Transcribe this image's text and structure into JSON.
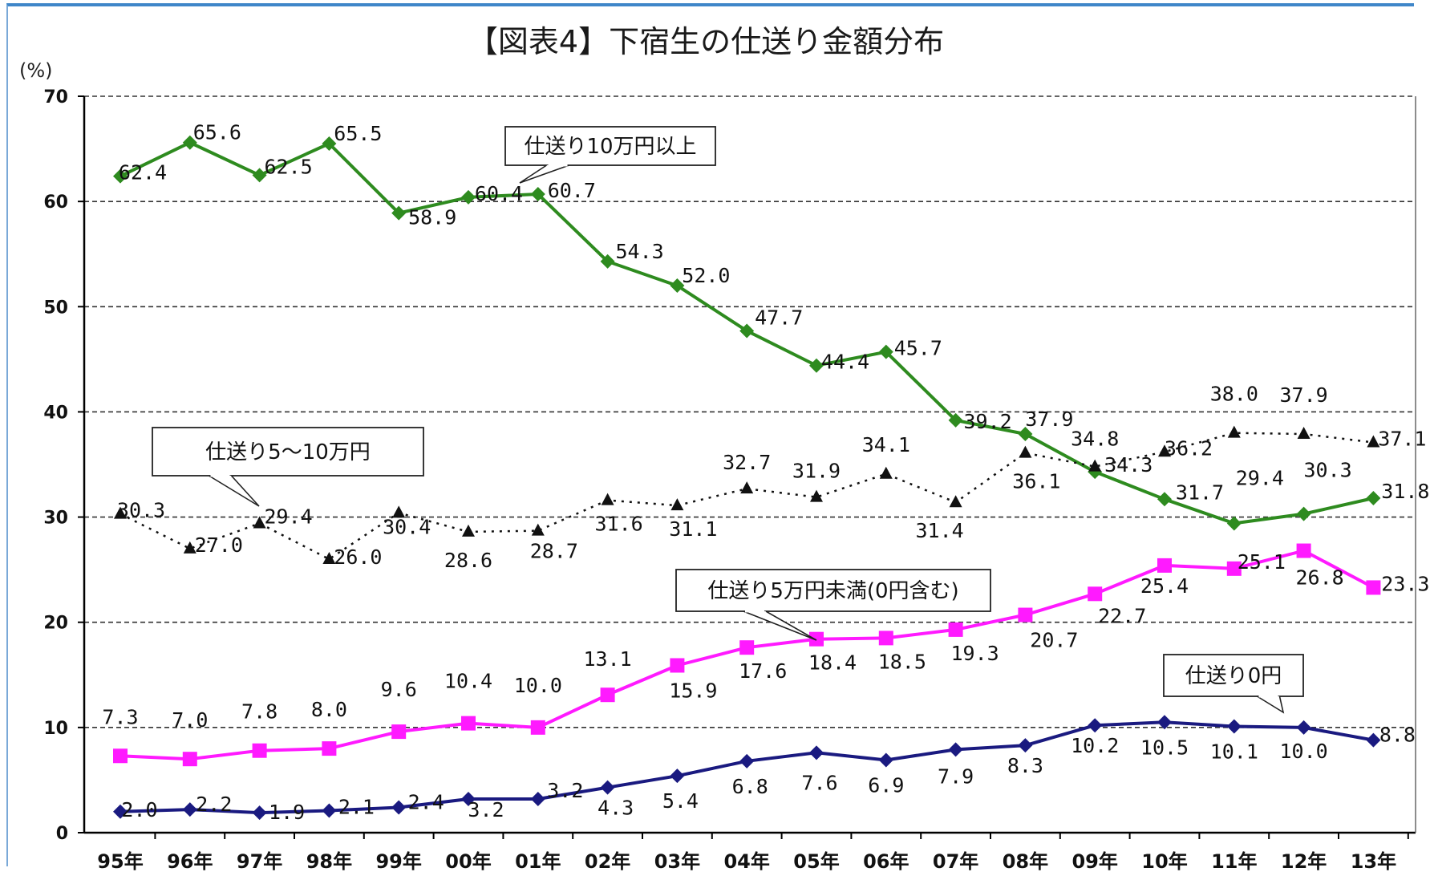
{
  "chart_data": {
    "type": "line",
    "title": "【図表4】下宿生の仕送り金額分布",
    "ylabel": "(%)",
    "ylim": [
      0,
      70
    ],
    "yticks": [
      "0",
      "10",
      "20",
      "30",
      "40",
      "50",
      "60",
      "70"
    ],
    "grid": true,
    "categories": [
      "95年",
      "96年",
      "97年",
      "98年",
      "99年",
      "00年",
      "01年",
      "02年",
      "03年",
      "04年",
      "05年",
      "06年",
      "07年",
      "08年",
      "09年",
      "10年",
      "11年",
      "12年",
      "13年"
    ],
    "series": [
      {
        "name": "仕送り10万円以上",
        "color": "#2e8b1f",
        "marker": "diamond",
        "line": "solid",
        "values": [
          62.4,
          65.6,
          62.5,
          65.5,
          58.9,
          60.4,
          60.7,
          54.3,
          52.0,
          47.7,
          44.4,
          45.7,
          39.2,
          37.9,
          34.3,
          31.7,
          29.4,
          30.3,
          31.8
        ],
        "labels": [
          "62.4",
          "65.6",
          "62.5",
          "65.5",
          "58.9",
          "60.4",
          "60.7",
          "54.3",
          "52.0",
          "47.7",
          "44.4",
          "45.7",
          "39.2",
          "37.9",
          "34.3",
          "31.7",
          "29.4",
          "30.3",
          "31.8"
        ]
      },
      {
        "name": "仕送り5～10万円",
        "color": "#111111",
        "marker": "triangle",
        "line": "dotted",
        "values": [
          30.3,
          27.0,
          29.4,
          26.0,
          30.4,
          28.6,
          28.7,
          31.6,
          31.1,
          32.7,
          31.9,
          34.1,
          31.4,
          36.1,
          34.8,
          36.2,
          38.0,
          37.9,
          37.1
        ],
        "labels": [
          "30.3",
          "27.0",
          "29.4",
          "26.0",
          "30.4",
          "28.6",
          "28.7",
          "31.6",
          "31.1",
          "32.7",
          "31.9",
          "34.1",
          "31.4",
          "36.1",
          "34.8",
          "36.2",
          "38.0",
          "37.9",
          "37.1"
        ]
      },
      {
        "name": "仕送り5万円未満(0円含む)",
        "color": "#ff1aff",
        "marker": "square",
        "line": "solid",
        "values": [
          7.3,
          7.0,
          7.8,
          8.0,
          9.6,
          10.4,
          10.0,
          13.1,
          15.9,
          17.6,
          18.4,
          18.5,
          19.3,
          20.7,
          22.7,
          25.4,
          25.1,
          26.8,
          23.3
        ],
        "labels": [
          "7.3",
          "7.0",
          "7.8",
          "8.0",
          "9.6",
          "10.4",
          "10.0",
          "13.1",
          "15.9",
          "17.6",
          "18.4",
          "18.5",
          "19.3",
          "20.7",
          "22.7",
          "25.4",
          "25.1",
          "26.8",
          "23.3"
        ]
      },
      {
        "name": "仕送り0円",
        "color": "#1a1a80",
        "marker": "diamond",
        "line": "solid",
        "values": [
          2.0,
          2.2,
          1.9,
          2.1,
          2.4,
          3.2,
          3.2,
          4.3,
          5.4,
          6.8,
          7.6,
          6.9,
          7.9,
          8.3,
          10.2,
          10.5,
          10.1,
          10.0,
          8.8
        ],
        "labels": [
          "2.0",
          "2.2",
          "1.9",
          "2.1",
          "2.4",
          "3.2",
          "3.2",
          "4.3",
          "5.4",
          "6.8",
          "7.6",
          "6.9",
          "7.9",
          "8.3",
          "10.2",
          "10.5",
          "10.1",
          "10.0",
          "8.8"
        ]
      }
    ],
    "callouts": [
      {
        "text": "仕送り10万円以上",
        "series": 0
      },
      {
        "text": "仕送り5～10万円",
        "series": 1
      },
      {
        "text": "仕送り5万円未満(0円含む)",
        "series": 2
      },
      {
        "text": "仕送り0円",
        "series": 3
      }
    ]
  }
}
